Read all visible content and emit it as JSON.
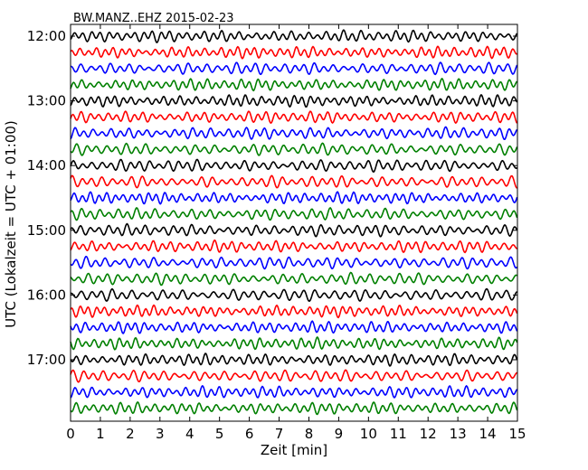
{
  "chart_data": {
    "type": "line",
    "title": "BW.MANZ..EHZ 2015-02-23",
    "xlabel": "Zeit  [min]",
    "ylabel": "UTC (Lokalzeit = UTC + 01:00)",
    "xlim": [
      0,
      15
    ],
    "x_ticks": [
      "0",
      "1",
      "2",
      "3",
      "4",
      "5",
      "6",
      "7",
      "8",
      "9",
      "10",
      "11",
      "12",
      "13",
      "14",
      "15"
    ],
    "y_ticks": [
      "12:00",
      "13:00",
      "14:00",
      "15:00",
      "16:00",
      "17:00"
    ],
    "grid": false,
    "trace_colors": [
      "#000000",
      "#ff0000",
      "#0000ff",
      "#008000"
    ],
    "traces": [
      {
        "start": "12:00",
        "color": "#000000"
      },
      {
        "start": "12:15",
        "color": "#ff0000"
      },
      {
        "start": "12:30",
        "color": "#0000ff"
      },
      {
        "start": "12:45",
        "color": "#008000"
      },
      {
        "start": "13:00",
        "color": "#000000"
      },
      {
        "start": "13:15",
        "color": "#ff0000"
      },
      {
        "start": "13:30",
        "color": "#0000ff"
      },
      {
        "start": "13:45",
        "color": "#008000"
      },
      {
        "start": "14:00",
        "color": "#000000"
      },
      {
        "start": "14:15",
        "color": "#ff0000"
      },
      {
        "start": "14:30",
        "color": "#0000ff"
      },
      {
        "start": "14:45",
        "color": "#008000"
      },
      {
        "start": "15:00",
        "color": "#000000"
      },
      {
        "start": "15:15",
        "color": "#ff0000"
      },
      {
        "start": "15:30",
        "color": "#0000ff"
      },
      {
        "start": "15:45",
        "color": "#008000"
      },
      {
        "start": "16:00",
        "color": "#000000"
      },
      {
        "start": "16:15",
        "color": "#ff0000"
      },
      {
        "start": "16:30",
        "color": "#0000ff"
      },
      {
        "start": "16:45",
        "color": "#008000"
      },
      {
        "start": "17:00",
        "color": "#000000"
      },
      {
        "start": "17:15",
        "color": "#ff0000"
      },
      {
        "start": "17:30",
        "color": "#0000ff"
      },
      {
        "start": "17:45",
        "color": "#008000"
      }
    ]
  }
}
